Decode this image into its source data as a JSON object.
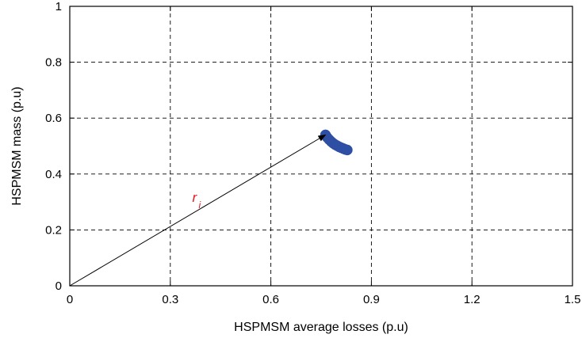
{
  "chart_data": {
    "type": "scatter",
    "title": "",
    "xlabel": "HSPMSM average losses (p.u)",
    "ylabel": "HSPMSM mass (p.u)",
    "xlim": [
      0,
      1.5
    ],
    "ylim": [
      0,
      1
    ],
    "x_ticks": [
      0,
      0.3,
      0.6,
      0.9,
      1.2,
      1.5
    ],
    "x_tick_labels": [
      "0",
      "0.3",
      "0.6",
      "0.9",
      "1.2",
      "1.5"
    ],
    "y_ticks": [
      0,
      0.2,
      0.4,
      0.6,
      0.8,
      1
    ],
    "y_tick_labels": [
      "0",
      "0.2",
      "0.4",
      "0.6",
      "0.8",
      "1"
    ],
    "grid": true,
    "grid_style": "dashed",
    "series": [
      {
        "name": "",
        "color": "#2e4fa3",
        "points": [
          [
            0.763,
            0.54
          ],
          [
            0.768,
            0.531
          ],
          [
            0.774,
            0.523
          ],
          [
            0.78,
            0.516
          ],
          [
            0.786,
            0.51
          ],
          [
            0.792,
            0.505
          ],
          [
            0.798,
            0.501
          ],
          [
            0.804,
            0.497
          ],
          [
            0.81,
            0.494
          ],
          [
            0.816,
            0.491
          ],
          [
            0.822,
            0.488
          ],
          [
            0.828,
            0.486
          ]
        ]
      }
    ],
    "annotations": [
      {
        "type": "arrow",
        "from": [
          0,
          0
        ],
        "to": [
          0.763,
          0.54
        ],
        "color": "#000000"
      },
      {
        "type": "text",
        "text": "r",
        "subscript": "i",
        "at": [
          0.375,
          0.3
        ],
        "color": "#e8141c"
      }
    ]
  }
}
